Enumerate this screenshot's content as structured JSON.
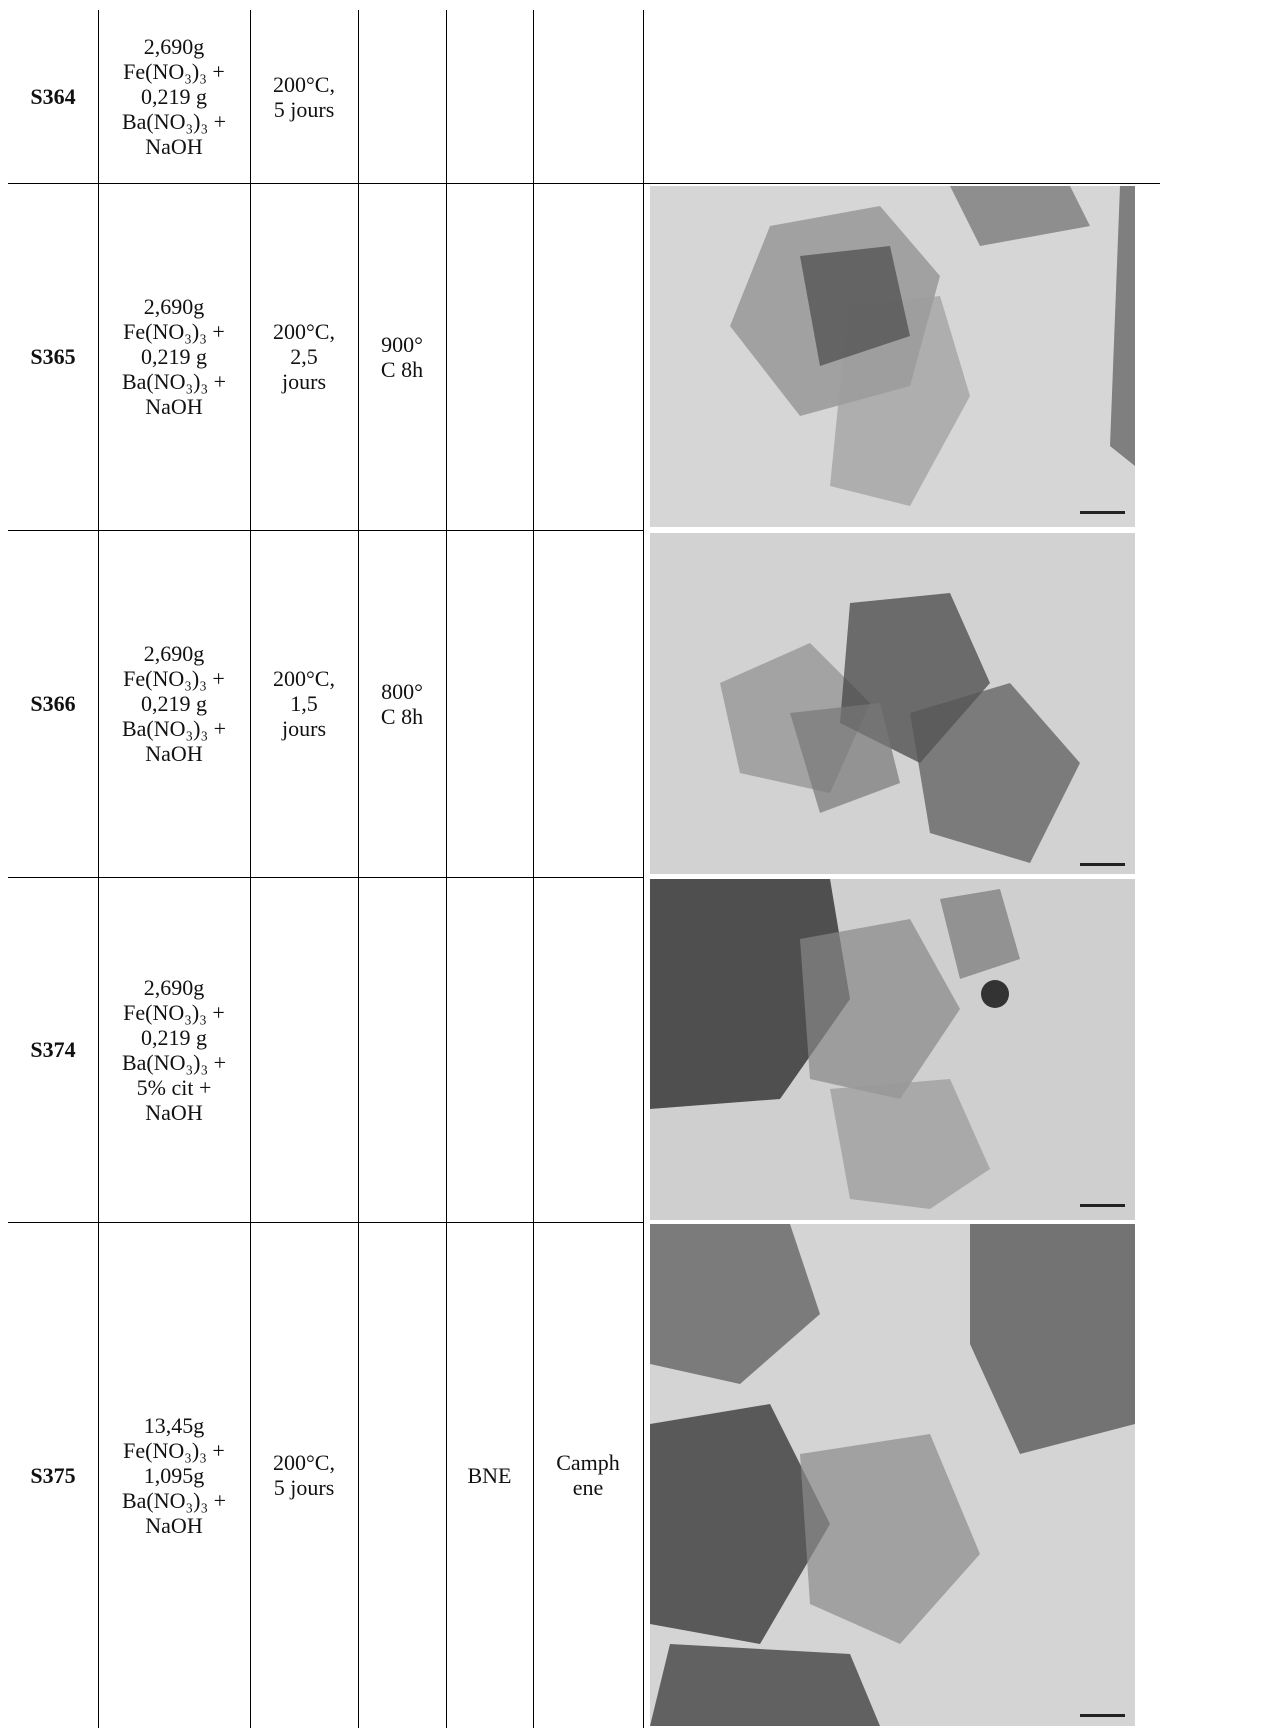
{
  "table": {
    "rows": [
      {
        "id": "S364",
        "composition": [
          "2,690g",
          "Fe(NO₃)₃ +",
          "0,219 g",
          "Ba(NO₃)₃ +",
          "NaOH"
        ],
        "synthesis": [
          "200°C,",
          "5 jours"
        ]
      },
      {
        "id": "S365",
        "composition": [
          "2,690g",
          "Fe(NO₃)₃ +",
          "0,219 g",
          "Ba(NO₃)₃ +",
          "NaOH"
        ],
        "synthesis": [
          "200°C,",
          "2,5",
          "jours"
        ],
        "calcination": [
          "900°",
          "C 8h"
        ]
      },
      {
        "id": "S366",
        "composition": [
          "2,690g",
          "Fe(NO₃)₃ +",
          "0,219 g",
          "Ba(NO₃)₃ +",
          "NaOH"
        ],
        "synthesis": [
          "200°C,",
          "1,5",
          "jours"
        ],
        "calcination": [
          "800°",
          "C 8h"
        ]
      },
      {
        "id": "S374",
        "composition": [
          "2,690g",
          "Fe(NO₃)₃ +",
          "0,219 g",
          "Ba(NO₃)₃ +",
          "5% cit +",
          "NaOH"
        ]
      },
      {
        "id": "S375",
        "composition": [
          "13,45g",
          "Fe(NO₃)₃ +",
          "1,095g",
          "Ba(NO₃)₃ +",
          "NaOH"
        ],
        "synthesis": [
          "200°C,",
          "5 jours"
        ],
        "medium": [
          "BNE"
        ],
        "solvent": [
          "Camph",
          "ene"
        ]
      }
    ]
  }
}
